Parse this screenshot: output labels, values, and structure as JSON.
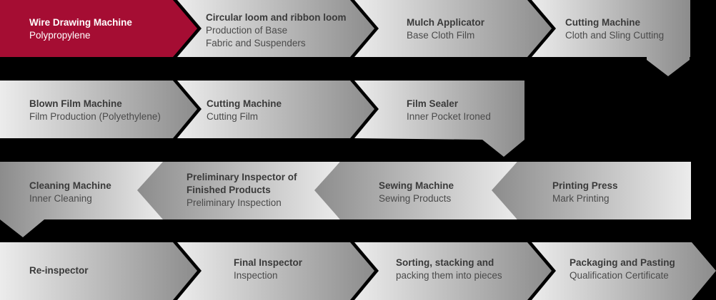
{
  "colors": {
    "highlight": "#a50d33",
    "light": "#e9e9e9",
    "dark": "#8a8a8a",
    "background": "#000000"
  },
  "steps": [
    {
      "title": "Wire Drawing Machine",
      "subtitle": [
        "Polypropylene"
      ]
    },
    {
      "title": "Circular loom and ribbon loom",
      "subtitle": [
        "Production of Base",
        "Fabric and Suspenders"
      ]
    },
    {
      "title": "Mulch Applicator",
      "subtitle": [
        "Base Cloth Film"
      ]
    },
    {
      "title": "Cutting Machine",
      "subtitle": [
        "Cloth and Sling Cutting"
      ]
    },
    {
      "title": "Blown Film Machine",
      "subtitle": [
        "Film Production (Polyethylene)"
      ]
    },
    {
      "title": "Cutting Machine",
      "subtitle": [
        "Cutting Film"
      ]
    },
    {
      "title": "Film Sealer",
      "subtitle": [
        "Inner Pocket Ironed"
      ]
    },
    {
      "title": "Cleaning Machine",
      "subtitle": [
        "Inner Cleaning"
      ]
    },
    {
      "title": "Preliminary Inspector of",
      "title2": "Finished Products",
      "subtitle": [
        "Preliminary Inspection"
      ]
    },
    {
      "title": "Sewing Machine",
      "subtitle": [
        "Sewing Products"
      ]
    },
    {
      "title": "Printing Press",
      "subtitle": [
        "Mark Printing"
      ]
    },
    {
      "title": "Re-inspector",
      "subtitle": []
    },
    {
      "title": "Final Inspector",
      "subtitle": [
        "Inspection"
      ]
    },
    {
      "title": "Sorting, stacking and",
      "subtitle": [
        "packing them into pieces"
      ]
    },
    {
      "title": "Packaging and Pasting",
      "subtitle": [
        "Qualification Certificate"
      ]
    }
  ]
}
